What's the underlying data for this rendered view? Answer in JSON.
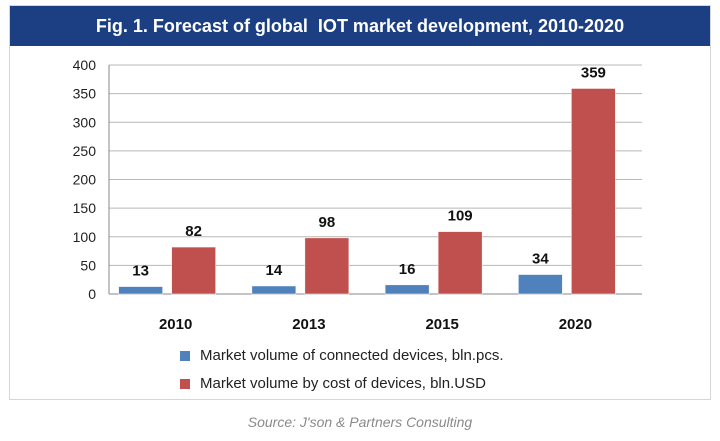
{
  "chart_data": {
    "type": "bar",
    "title": "Fig. 1. Forecast of global  IOT market development, 2010-2020",
    "categories": [
      "2010",
      "2013",
      "2015",
      "2020"
    ],
    "series": [
      {
        "name": "Market volume of connected devices, bln.pcs.",
        "values": [
          13,
          14,
          16,
          34
        ],
        "color": "#4f81bd"
      },
      {
        "name": "Market volume by cost of devices, bln.USD",
        "values": [
          82,
          98,
          109,
          359
        ],
        "color": "#c0504d"
      }
    ],
    "ylim": [
      0,
      400
    ],
    "yticks": [
      "0",
      "50",
      "100",
      "150",
      "200",
      "250",
      "300",
      "350",
      "400"
    ],
    "grid": true,
    "xlabel": "",
    "ylabel": ""
  },
  "source": "Source: J'son & Partners Consulting"
}
